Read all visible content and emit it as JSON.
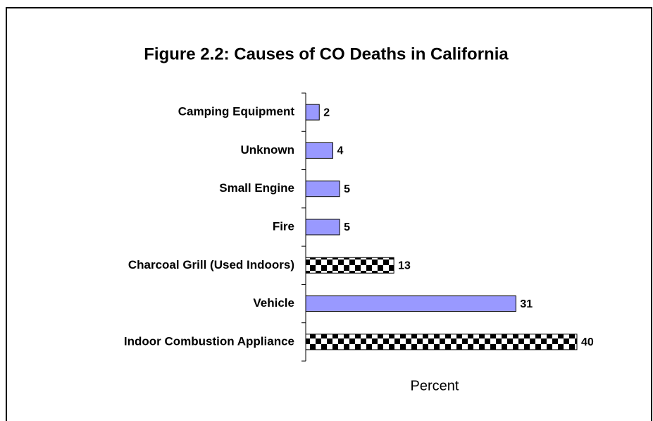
{
  "chart_data": {
    "type": "hbar",
    "title": "Figure 2.2:  Causes of CO Deaths in California",
    "xlabel": "Percent",
    "categories": [
      "Camping Equipment",
      "Unknown",
      "Small Engine",
      "Fire",
      "Charcoal Grill (Used Indoors)",
      "Vehicle",
      "Indoor Combustion Appliance"
    ],
    "values": [
      2,
      4,
      5,
      5,
      13,
      31,
      40
    ],
    "color": "#9999ff",
    "patterns": [
      "solid",
      "solid",
      "solid",
      "solid",
      "checker",
      "solid",
      "checker"
    ],
    "xlim": [
      0,
      40
    ]
  }
}
